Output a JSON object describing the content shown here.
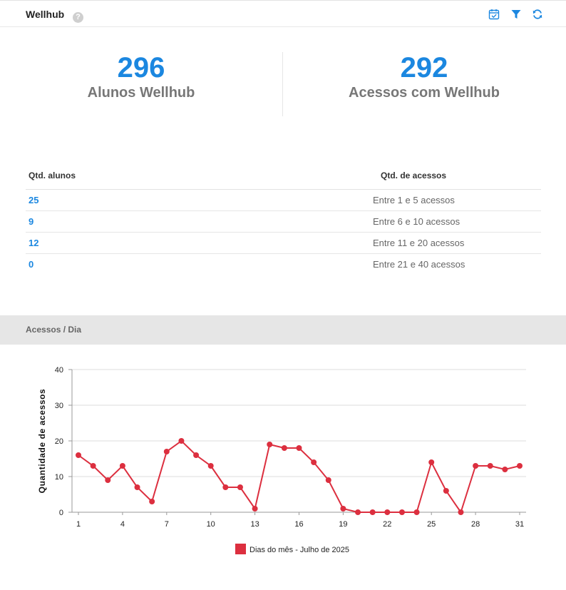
{
  "header": {
    "title": "Wellhub",
    "help_icon": "help-circle-icon",
    "tools": [
      {
        "name": "calendar-check-icon",
        "color": "#1b87e0"
      },
      {
        "name": "filter-icon",
        "color": "#1b87e0"
      },
      {
        "name": "refresh-icon",
        "color": "#1b87e0"
      }
    ]
  },
  "kpis": [
    {
      "value": "296",
      "label": "Alunos Wellhub"
    },
    {
      "value": "292",
      "label": "Acessos com Wellhub"
    }
  ],
  "table": {
    "headers": {
      "count": "Qtd. alunos",
      "range": "Qtd. de acessos"
    },
    "rows": [
      {
        "count": "25",
        "range": "Entre 1 e 5 acessos"
      },
      {
        "count": "9",
        "range": "Entre 6 e 10 acessos"
      },
      {
        "count": "12",
        "range": "Entre 11 e 20 acessos"
      },
      {
        "count": "0",
        "range": "Entre 21 e 40 acessos"
      }
    ]
  },
  "section": {
    "title": "Acessos / Dia"
  },
  "colors": {
    "accent": "#1b87e0",
    "series": "#dc2f3f"
  },
  "chart_data": {
    "type": "line",
    "title": "",
    "xlabel": "",
    "ylabel": "Quantidade de acessos",
    "x": [
      1,
      2,
      3,
      4,
      5,
      6,
      7,
      8,
      9,
      10,
      11,
      12,
      13,
      14,
      15,
      16,
      17,
      18,
      19,
      20,
      21,
      22,
      23,
      24,
      25,
      26,
      27,
      28,
      29,
      30,
      31
    ],
    "x_tick_labels": [
      "1",
      "4",
      "7",
      "10",
      "13",
      "16",
      "19",
      "22",
      "25",
      "28",
      "31"
    ],
    "ylim": [
      0,
      40
    ],
    "y_ticks": [
      0,
      10,
      20,
      30,
      40
    ],
    "grid": true,
    "legend": "bottom",
    "series": [
      {
        "name": "Dias do mês - Julho de 2025",
        "color": "#dc2f3f",
        "values": [
          16,
          13,
          9,
          13,
          7,
          3,
          17,
          20,
          16,
          13,
          7,
          7,
          1,
          19,
          18,
          18,
          14,
          9,
          1,
          0,
          0,
          0,
          0,
          0,
          14,
          6,
          0,
          13,
          13,
          12,
          13
        ]
      }
    ]
  }
}
